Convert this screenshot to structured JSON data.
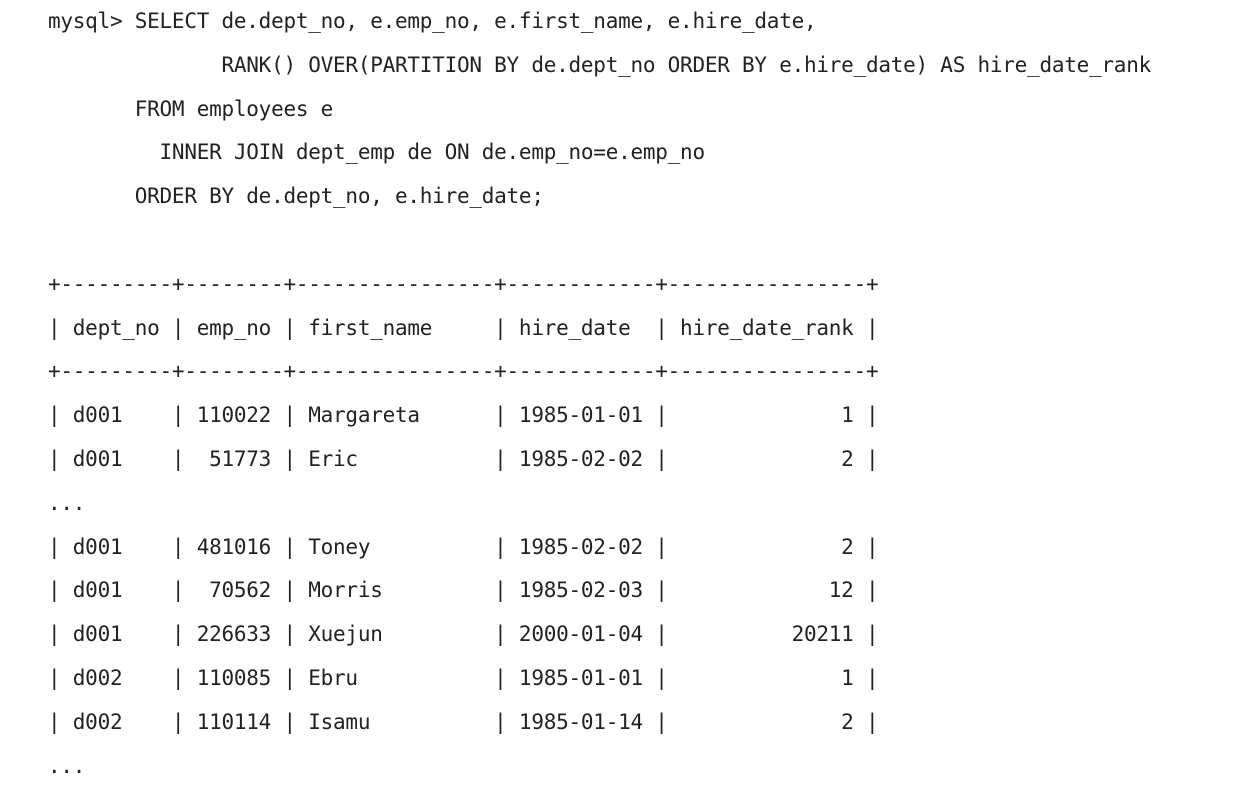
{
  "query": {
    "line_1": "mysql> SELECT de.dept_no, e.emp_no, e.first_name, e.hire_date,",
    "line_2": "              RANK() OVER(PARTITION BY de.dept_no ORDER BY e.hire_date) AS hire_date_rank",
    "line_3": "       FROM employees e",
    "line_4": "         INNER JOIN dept_emp de ON de.emp_no=e.emp_no",
    "line_5": "       ORDER BY de.dept_no, e.hire_date;"
  },
  "result": {
    "border": "+---------+--------+----------------+------------+----------------+",
    "header": "| dept_no | emp_no | first_name     | hire_date  | hire_date_rank |",
    "rows": [
      "| d001    | 110022 | Margareta      | 1985-01-01 |              1 |",
      "| d001    |  51773 | Eric           | 1985-02-02 |              2 |",
      "...",
      "| d001    | 481016 | Toney          | 1985-02-02 |              2 |",
      "| d001    |  70562 | Morris         | 1985-02-03 |             12 |",
      "| d001    | 226633 | Xuejun         | 2000-01-04 |          20211 |",
      "| d002    | 110085 | Ebru           | 1985-01-01 |              1 |",
      "| d002    | 110114 | Isamu          | 1985-01-14 |              2 |",
      "..."
    ]
  }
}
